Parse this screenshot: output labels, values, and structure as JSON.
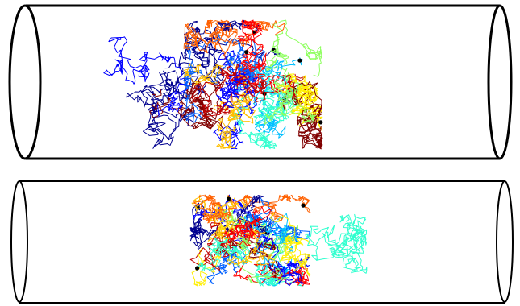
{
  "figure": {
    "panels": [
      {
        "id": "top-tube",
        "traj_colors": [
          "#00008f",
          "#0000ff",
          "#0060ff",
          "#00bfff",
          "#30ffcf",
          "#8fff60",
          "#ffef00",
          "#ffbf00",
          "#ff6000",
          "#ff0000",
          "#bf0000",
          "#800000"
        ],
        "endpoint_color": "#000000"
      },
      {
        "id": "bottom-tube",
        "traj_colors": [
          "#00008f",
          "#0000ff",
          "#0060ff",
          "#00bfff",
          "#30ffcf",
          "#8fff60",
          "#ffef00",
          "#ffbf00",
          "#ff6000",
          "#ff0000",
          "#bf0000",
          "#800000"
        ],
        "endpoint_color": "#000000"
      }
    ]
  }
}
